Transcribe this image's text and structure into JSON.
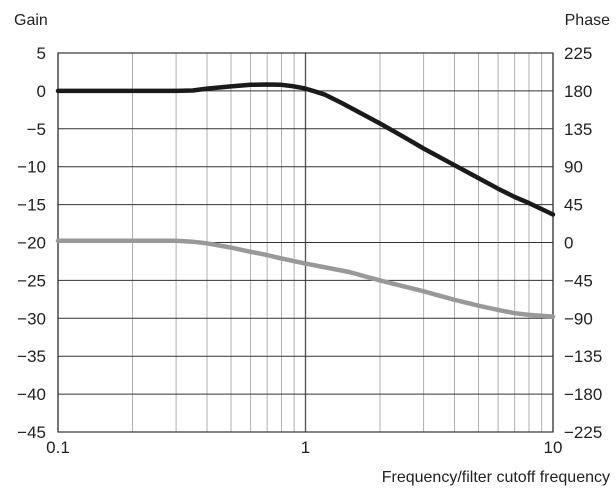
{
  "chart_data": {
    "type": "line",
    "x_scale": "log",
    "xlim": [
      0.1,
      10
    ],
    "x_ticks": [
      "0.1",
      "1",
      "10"
    ],
    "xlabel": "Frequency/filter cutoff frequency",
    "y_left": {
      "label": "Gain",
      "ylim": [
        -45,
        5
      ],
      "ticks": [
        "5",
        "0",
        "−5",
        "−10",
        "−15",
        "−20",
        "−25",
        "−30",
        "−35",
        "−40",
        "−45"
      ]
    },
    "y_right": {
      "label": "Phase",
      "ylim": [
        -225,
        225
      ],
      "ticks": [
        "225",
        "180",
        "135",
        "90",
        "45",
        "0",
        "−45",
        "−90",
        "−135",
        "−180",
        "−225"
      ]
    },
    "grid": true,
    "legend": "none",
    "series": [
      {
        "axis": "left",
        "color": "#1a1a1a",
        "points": [
          [
            0.1,
            0.0
          ],
          [
            0.15,
            0.0
          ],
          [
            0.2,
            0.0
          ],
          [
            0.25,
            0.0
          ],
          [
            0.3,
            0.0
          ],
          [
            0.35,
            0.05
          ],
          [
            0.4,
            0.3
          ],
          [
            0.5,
            0.6
          ],
          [
            0.6,
            0.8
          ],
          [
            0.7,
            0.85
          ],
          [
            0.8,
            0.8
          ],
          [
            0.9,
            0.6
          ],
          [
            1.0,
            0.3
          ],
          [
            1.1,
            -0.1
          ],
          [
            1.2,
            -0.5
          ],
          [
            1.4,
            -1.6
          ],
          [
            1.6,
            -2.6
          ],
          [
            2.0,
            -4.3
          ],
          [
            2.5,
            -6.1
          ],
          [
            3.0,
            -7.6
          ],
          [
            4.0,
            -9.8
          ],
          [
            5.0,
            -11.5
          ],
          [
            6.0,
            -12.9
          ],
          [
            7.0,
            -14.0
          ],
          [
            8.0,
            -14.8
          ],
          [
            9.0,
            -15.6
          ],
          [
            10.0,
            -16.3
          ]
        ]
      },
      {
        "axis": "right",
        "color": "#999999",
        "points": [
          [
            0.1,
            2
          ],
          [
            0.15,
            2
          ],
          [
            0.2,
            2
          ],
          [
            0.3,
            2
          ],
          [
            0.35,
            1
          ],
          [
            0.4,
            -1
          ],
          [
            0.5,
            -6
          ],
          [
            0.6,
            -11
          ],
          [
            0.7,
            -15
          ],
          [
            0.8,
            -19
          ],
          [
            1.0,
            -25
          ],
          [
            1.5,
            -35
          ],
          [
            2.0,
            -45
          ],
          [
            3.0,
            -58
          ],
          [
            4.0,
            -68
          ],
          [
            5.0,
            -75
          ],
          [
            6.0,
            -80
          ],
          [
            7.0,
            -84
          ],
          [
            8.0,
            -86
          ],
          [
            10.0,
            -88
          ]
        ]
      }
    ]
  }
}
